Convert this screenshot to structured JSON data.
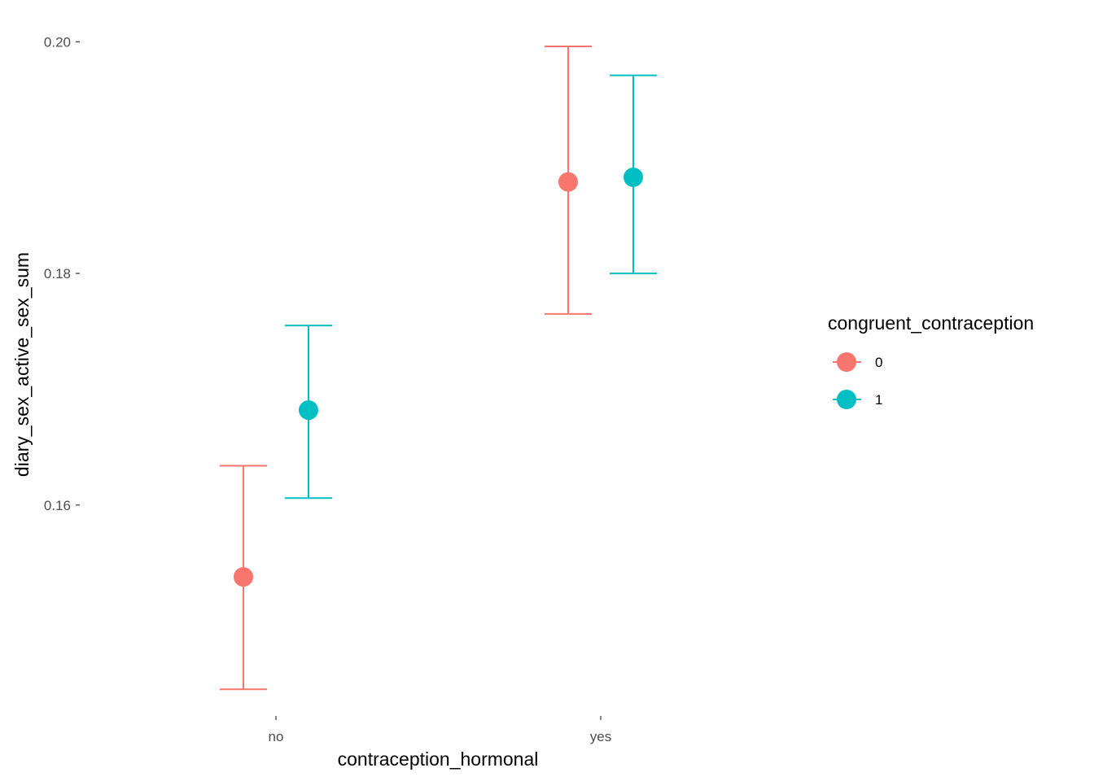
{
  "chart_data": {
    "type": "scatter",
    "title": "",
    "xlabel": "contraception_hormonal",
    "ylabel": "diary_sex_active_sex_sum",
    "categories": [
      "no",
      "yes"
    ],
    "ylim": [
      0.1425,
      0.2015
    ],
    "yticks": [
      0.16,
      0.18,
      0.2
    ],
    "ytick_labels": [
      "0.16",
      "0.18",
      "0.20"
    ],
    "grid": false,
    "legend": {
      "title": "congruent_contraception",
      "placement": "right",
      "entries": [
        "0",
        "1"
      ]
    },
    "series": [
      {
        "name": "0",
        "color": "#F8766D",
        "points": [
          {
            "category": "no",
            "y": 0.1538,
            "ymin": 0.1441,
            "ymax": 0.1634
          },
          {
            "category": "yes",
            "y": 0.1879,
            "ymin": 0.1765,
            "ymax": 0.1996
          }
        ]
      },
      {
        "name": "1",
        "color": "#00BFC4",
        "points": [
          {
            "category": "no",
            "y": 0.1682,
            "ymin": 0.1606,
            "ymax": 0.1755
          },
          {
            "category": "yes",
            "y": 0.1883,
            "ymin": 0.18,
            "ymax": 0.1971
          }
        ]
      }
    ]
  }
}
